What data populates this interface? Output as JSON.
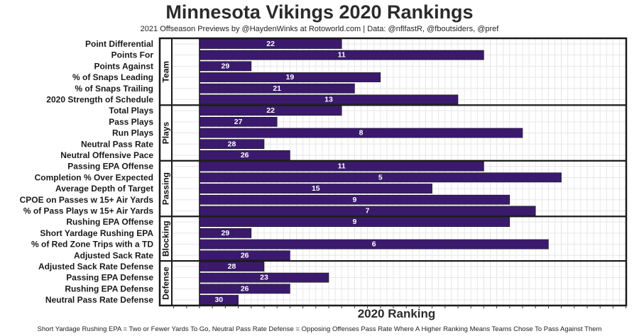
{
  "title": "Minnesota Vikings 2020 Rankings",
  "subtitle": "2021 Offseason Previews by @HaydenWinks at Rotoworld.com | Data: @nflfastR, @fboutsiders, @pref",
  "footnote": "Short Yardage Rushing EPA = Two or Fewer Yards To Go, Neutral Pass Rate Defense = Opposing Offenses Pass Rate Where A Higher Ranking Means Teams Chose To Pass Against Them",
  "colors": {
    "bar": "#3b1a6e",
    "bar_label": "#ffffff",
    "frame": "#1a1a1a",
    "grid": "#e6e6e6"
  },
  "chart_data": {
    "type": "bar",
    "orientation": "horizontal",
    "xlabel": "2020 Ranking",
    "value_meaning": "rank (1 = best, 32 = worst); bar length = 33 - rank",
    "grid": true,
    "groups": [
      {
        "name": "Team",
        "items": [
          {
            "label": "Point Differential",
            "value": 22
          },
          {
            "label": "Points For",
            "value": 11
          },
          {
            "label": "Points Against",
            "value": 29
          },
          {
            "label": "% of Snaps Leading",
            "value": 19
          },
          {
            "label": "% of Snaps Trailing",
            "value": 21
          },
          {
            "label": "2020 Strength of Schedule",
            "value": 13
          }
        ]
      },
      {
        "name": "Plays",
        "items": [
          {
            "label": "Total Plays",
            "value": 22
          },
          {
            "label": "Pass Plays",
            "value": 27
          },
          {
            "label": "Run Plays",
            "value": 8
          },
          {
            "label": "Neutral Pass Rate",
            "value": 28
          },
          {
            "label": "Neutral Offensive Pace",
            "value": 26
          }
        ]
      },
      {
        "name": "Passing",
        "items": [
          {
            "label": "Passing EPA Offense",
            "value": 11
          },
          {
            "label": "Completion % Over Expected",
            "value": 5
          },
          {
            "label": "Average Depth of Target",
            "value": 15
          },
          {
            "label": "CPOE on Passes w 15+ Air Yards",
            "value": 9
          },
          {
            "label": "% of Pass Plays w 15+ Air Yards",
            "value": 7
          }
        ]
      },
      {
        "name": "Blocking",
        "items": [
          {
            "label": "Rushing EPA Offense",
            "value": 9
          },
          {
            "label": "Short Yardage Rushing EPA",
            "value": 29
          },
          {
            "label": "% of Red Zone Trips with a TD",
            "value": 6
          },
          {
            "label": "Adjusted Sack Rate",
            "value": 26
          }
        ]
      },
      {
        "name": "Defense",
        "items": [
          {
            "label": "Adjusted Sack Rate Defense",
            "value": 28
          },
          {
            "label": "Passing EPA Defense",
            "value": 23
          },
          {
            "label": "Rushing EPA Defense",
            "value": 26
          },
          {
            "label": "Neutral Pass Rate Defense",
            "value": 30
          }
        ]
      }
    ]
  }
}
